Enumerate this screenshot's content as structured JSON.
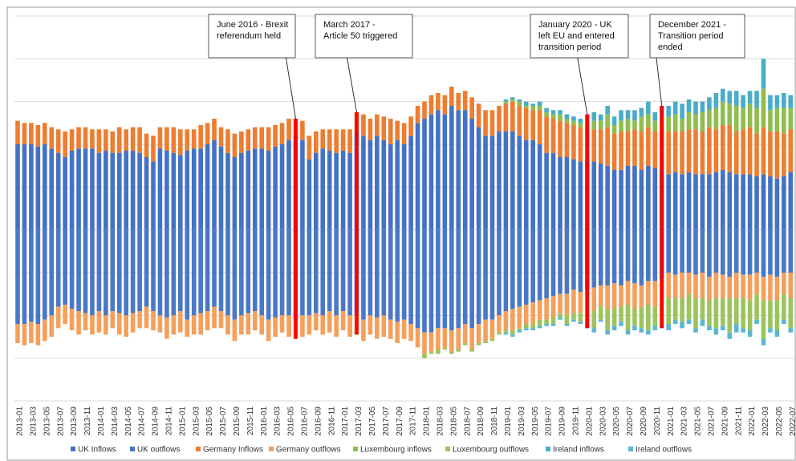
{
  "chart_data": {
    "type": "bar",
    "stacked": true,
    "categories": [
      "2013-01",
      null,
      "2013-03",
      null,
      "2013-05",
      null,
      "2013-07",
      null,
      "2013-09",
      null,
      "2013-11",
      null,
      "2014-01",
      null,
      "2014-03",
      null,
      "2014-05",
      null,
      "2014-07",
      null,
      "2014-09",
      null,
      "2014-11",
      null,
      "2015-01",
      null,
      "2015-03",
      null,
      "2015-05",
      null,
      "2015-07",
      null,
      "2015-09",
      null,
      "2015-11",
      null,
      "2016-01",
      null,
      "2016-03",
      null,
      "2016-05",
      null,
      "2016-07",
      null,
      "2016-09",
      null,
      "2016-11",
      null,
      "2017-01",
      null,
      "2017-03",
      null,
      "2017-05",
      null,
      "2017-07",
      null,
      "2017-09",
      null,
      "2017-11",
      null,
      "2018-01",
      null,
      "2018-03",
      null,
      "2018-05",
      null,
      "2018-07",
      null,
      "2018-09",
      null,
      "2018-11",
      null,
      "2019-01",
      null,
      "2019-03",
      null,
      "2019-05",
      null,
      "2019-07",
      null,
      "2019-09",
      null,
      "2019-11",
      null,
      "2020-01",
      null,
      "2020-03",
      null,
      "2020-05",
      null,
      "2020-07",
      null,
      "2020-09",
      null,
      "2020-11",
      null,
      "2021-01",
      null,
      "2021-03",
      null,
      "2021-05",
      null,
      "2021-07",
      null,
      "2021-09",
      null,
      "2021-11",
      null,
      "2022-01",
      null,
      "2022-03",
      null,
      "2022-05",
      null,
      "2022-07"
    ],
    "series": [
      {
        "name": "UK Inflows",
        "color": "#4472c4",
        "values": [
          2.0,
          2.0,
          2.0,
          1.95,
          2.0,
          1.9,
          1.8,
          1.7,
          1.85,
          1.9,
          1.9,
          1.9,
          1.8,
          1.85,
          1.8,
          1.8,
          1.85,
          1.85,
          1.8,
          1.7,
          1.6,
          1.9,
          1.85,
          1.8,
          1.75,
          1.85,
          1.9,
          1.9,
          2.0,
          2.1,
          1.95,
          1.8,
          1.7,
          1.8,
          1.85,
          1.9,
          1.9,
          1.85,
          1.95,
          2.0,
          2.1,
          2.2,
          2.1,
          1.65,
          1.8,
          1.9,
          1.85,
          1.8,
          1.85,
          1.8,
          2.3,
          2.2,
          2.1,
          2.2,
          2.1,
          2.0,
          2.1,
          2.0,
          2.2,
          2.5,
          2.6,
          2.7,
          2.8,
          2.7,
          2.9,
          2.8,
          2.8,
          2.6,
          2.4,
          2.2,
          2.2,
          2.3,
          2.3,
          2.3,
          2.2,
          2.1,
          2.1,
          2.0,
          1.8,
          1.8,
          1.7,
          1.7,
          1.65,
          1.6,
          1.6,
          1.6,
          1.55,
          1.5,
          1.4,
          1.4,
          1.5,
          1.5,
          1.4,
          1.5,
          1.45,
          1.4,
          1.3,
          1.35,
          1.3,
          1.35,
          1.3,
          1.3,
          1.3,
          1.35,
          1.4,
          1.35,
          1.3,
          1.3,
          1.3,
          1.25,
          1.3,
          1.25,
          1.2,
          1.25,
          1.35
        ]
      },
      {
        "name": "UK outflows",
        "color": "#4a78c6",
        "values": [
          -2.2,
          -2.2,
          -2.15,
          -2.2,
          -2.1,
          -2.0,
          -1.8,
          -1.75,
          -1.85,
          -1.9,
          -1.95,
          -2.0,
          -1.9,
          -2.0,
          -1.9,
          -1.95,
          -2.0,
          -1.95,
          -1.9,
          -1.8,
          -1.9,
          -2.0,
          -2.05,
          -2.0,
          -1.9,
          -2.1,
          -2.0,
          -1.95,
          -1.9,
          -1.8,
          -1.9,
          -2.0,
          -2.1,
          -2.0,
          -1.95,
          -1.9,
          -2.0,
          -2.1,
          -2.05,
          -2.0,
          -2.0,
          -2.1,
          -2.0,
          -2.0,
          -1.95,
          -2.0,
          -1.9,
          -2.0,
          -1.9,
          -2.0,
          -2.0,
          -2.1,
          -2.0,
          -2.05,
          -2.0,
          -2.1,
          -2.15,
          -2.1,
          -2.2,
          -2.3,
          -2.4,
          -2.4,
          -2.3,
          -2.3,
          -2.35,
          -2.3,
          -2.2,
          -2.3,
          -2.2,
          -2.1,
          -2.1,
          -2.0,
          -1.9,
          -1.85,
          -1.8,
          -1.75,
          -1.7,
          -1.65,
          -1.6,
          -1.55,
          -1.5,
          -1.5,
          -1.4,
          -1.45,
          -1.4,
          -1.35,
          -1.3,
          -1.3,
          -1.25,
          -1.3,
          -1.2,
          -1.25,
          -1.3,
          -1.2,
          -1.2,
          -1.15,
          -1.0,
          -1.05,
          -1.0,
          -1.0,
          -1.05,
          -1.0,
          -1.1,
          -1.0,
          -1.05,
          -1.1,
          -1.0,
          -1.05,
          -1.05,
          -1.0,
          -1.1,
          -1.05,
          -1.1,
          -1.0,
          -1.0
        ]
      },
      {
        "name": "Germany Inflows",
        "color": "#ed7d31",
        "values": [
          0.55,
          0.5,
          0.5,
          0.5,
          0.5,
          0.5,
          0.55,
          0.6,
          0.5,
          0.5,
          0.5,
          0.45,
          0.55,
          0.5,
          0.5,
          0.6,
          0.5,
          0.55,
          0.6,
          0.55,
          0.6,
          0.5,
          0.55,
          0.6,
          0.6,
          0.5,
          0.45,
          0.55,
          0.5,
          0.5,
          0.45,
          0.55,
          0.55,
          0.5,
          0.5,
          0.5,
          0.5,
          0.55,
          0.5,
          0.5,
          0.5,
          0.4,
          0.45,
          0.55,
          0.5,
          0.45,
          0.5,
          0.55,
          0.5,
          0.55,
          0.45,
          0.5,
          0.5,
          0.5,
          0.55,
          0.6,
          0.45,
          0.5,
          0.45,
          0.4,
          0.4,
          0.45,
          0.4,
          0.45,
          0.45,
          0.4,
          0.45,
          0.5,
          0.55,
          0.6,
          0.6,
          0.6,
          0.65,
          0.7,
          0.7,
          0.75,
          0.7,
          0.8,
          0.85,
          0.8,
          0.85,
          0.8,
          0.8,
          0.8,
          0.8,
          0.75,
          0.8,
          0.9,
          0.85,
          0.9,
          0.8,
          0.85,
          0.9,
          0.9,
          0.85,
          0.95,
          1.0,
          0.95,
          1.0,
          1.0,
          1.05,
          1.0,
          1.1,
          1.0,
          1.05,
          1.1,
          1.0,
          1.05,
          1.1,
          1.0,
          1.1,
          1.05,
          1.1,
          1.0,
          1.0
        ]
      },
      {
        "name": "Germany outflows",
        "color": "#f4a05c",
        "values": [
          -0.45,
          -0.5,
          -0.5,
          -0.5,
          -0.5,
          -0.5,
          -0.5,
          -0.45,
          -0.5,
          -0.55,
          -0.4,
          -0.45,
          -0.5,
          -0.45,
          -0.4,
          -0.5,
          -0.5,
          -0.45,
          -0.4,
          -0.5,
          -0.45,
          -0.4,
          -0.5,
          -0.45,
          -0.5,
          -0.4,
          -0.45,
          -0.5,
          -0.45,
          -0.5,
          -0.4,
          -0.45,
          -0.5,
          -0.45,
          -0.5,
          -0.45,
          -0.45,
          -0.5,
          -0.45,
          -0.4,
          -0.5,
          -0.45,
          -0.5,
          -0.45,
          -0.4,
          -0.45,
          -0.5,
          -0.5,
          -0.45,
          -0.5,
          -0.45,
          -0.5,
          -0.45,
          -0.5,
          -0.5,
          -0.45,
          -0.5,
          -0.45,
          -0.4,
          -0.45,
          -0.5,
          -0.45,
          -0.5,
          -0.45,
          -0.5,
          -0.5,
          -0.45,
          -0.5,
          -0.45,
          -0.5,
          -0.45,
          -0.4,
          -0.45,
          -0.5,
          -0.5,
          -0.45,
          -0.5,
          -0.45,
          -0.5,
          -0.5,
          -0.45,
          -0.5,
          -0.55,
          -0.5,
          -0.5,
          -0.55,
          -0.5,
          -0.55,
          -0.6,
          -0.5,
          -0.55,
          -0.6,
          -0.5,
          -0.55,
          -0.6,
          -0.55,
          -0.6,
          -0.55,
          -0.6,
          -0.5,
          -0.55,
          -0.6,
          -0.55,
          -0.6,
          -0.55,
          -0.5,
          -0.6,
          -0.55,
          -0.6,
          -0.5,
          -0.55,
          -0.6,
          -0.55,
          -0.5,
          -0.6
        ]
      },
      {
        "name": "Luxembourg inflows",
        "color": "#8fbd4e",
        "values": [
          0,
          0,
          0,
          0,
          0,
          0,
          0,
          0,
          0,
          0,
          0,
          0,
          0,
          0,
          0,
          0,
          0,
          0,
          0,
          0,
          0,
          0,
          0,
          0,
          0,
          0,
          0,
          0,
          0,
          0,
          0,
          0,
          0,
          0,
          0,
          0,
          0,
          0,
          0,
          0,
          0,
          0,
          0,
          0,
          0,
          0,
          0,
          0,
          0,
          0,
          0,
          0,
          0,
          0,
          0,
          0,
          0,
          0,
          0,
          0,
          0,
          0,
          0,
          0,
          0,
          0,
          0,
          0,
          0,
          0,
          0,
          0,
          0.05,
          0.05,
          0.1,
          0.05,
          0.1,
          0.1,
          0.1,
          0.1,
          0.15,
          0.1,
          0.1,
          0.1,
          0.15,
          0.2,
          0.2,
          0.3,
          0.2,
          0.25,
          0.3,
          0.2,
          0.35,
          0.3,
          0.25,
          0.3,
          0.35,
          0.4,
          0.3,
          0.4,
          0.35,
          0.45,
          0.4,
          0.5,
          0.55,
          0.5,
          0.6,
          0.5,
          0.55,
          0.6,
          0.9,
          0.5,
          0.55,
          0.6,
          0.5
        ]
      },
      {
        "name": "Luxembourg outflows",
        "color": "#9cc45e",
        "values": [
          0,
          0,
          0,
          0,
          0,
          0,
          0,
          0,
          0,
          0,
          0,
          0,
          0,
          0,
          0,
          0,
          0,
          0,
          0,
          0,
          0,
          0,
          0,
          0,
          0,
          0,
          0,
          0,
          0,
          0,
          0,
          0,
          0,
          0,
          0,
          0,
          0,
          0,
          0,
          0,
          0,
          0,
          0,
          0,
          0,
          0,
          0,
          0,
          0,
          0,
          0,
          0,
          0,
          0,
          0,
          0,
          0,
          0,
          0,
          0,
          -0.1,
          -0.05,
          -0.1,
          -0.05,
          -0.05,
          -0.05,
          -0.05,
          -0.05,
          -0.05,
          -0.05,
          -0.05,
          -0.05,
          -0.05,
          -0.1,
          -0.05,
          -0.1,
          -0.1,
          -0.15,
          -0.1,
          -0.15,
          -0.1,
          -0.2,
          -0.15,
          -0.2,
          -0.3,
          -0.4,
          -0.3,
          -0.5,
          -0.4,
          -0.35,
          -0.6,
          -0.4,
          -0.5,
          -0.6,
          -0.45,
          -0.5,
          -0.6,
          -0.5,
          -0.55,
          -0.6,
          -0.7,
          -0.5,
          -0.6,
          -0.7,
          -0.65,
          -0.8,
          -0.6,
          -0.7,
          -0.7,
          -0.6,
          -0.9,
          -0.65,
          -0.7,
          -0.6,
          -0.7
        ]
      },
      {
        "name": "Ireland inflows",
        "color": "#4bacc6",
        "values": [
          0,
          0,
          0,
          0,
          0,
          0,
          0,
          0,
          0,
          0,
          0,
          0,
          0,
          0,
          0,
          0,
          0,
          0,
          0,
          0,
          0,
          0,
          0,
          0,
          0,
          0,
          0,
          0,
          0,
          0,
          0,
          0,
          0,
          0,
          0,
          0,
          0,
          0,
          0,
          0,
          0,
          0,
          0,
          0,
          0,
          0,
          0,
          0,
          0,
          0,
          0,
          0,
          0,
          0,
          0,
          0,
          0,
          0,
          0,
          0,
          0,
          0,
          0,
          0,
          0,
          0,
          0,
          0,
          0,
          0,
          0,
          0,
          0.05,
          0.05,
          0.05,
          0.1,
          0.05,
          0.1,
          0.1,
          0.1,
          0.1,
          0.1,
          0.1,
          0.1,
          0.15,
          0.2,
          0.15,
          0.2,
          0.2,
          0.25,
          0.2,
          0.25,
          0.2,
          0.3,
          0.2,
          0.25,
          0.25,
          0.3,
          0.35,
          0.3,
          0.3,
          0.25,
          0.3,
          0.35,
          0.3,
          0.3,
          0.35,
          0.3,
          0.3,
          0.4,
          0.7,
          0.35,
          0.3,
          0.35,
          0.3
        ]
      },
      {
        "name": "Ireland outflows",
        "color": "#5bb6d4",
        "values": [
          0,
          0,
          0,
          0,
          0,
          0,
          0,
          0,
          0,
          0,
          0,
          0,
          0,
          0,
          0,
          0,
          0,
          0,
          0,
          0,
          0,
          0,
          0,
          0,
          0,
          0,
          0,
          0,
          0,
          0,
          0,
          0,
          0,
          0,
          0,
          0,
          0,
          0,
          0,
          0,
          0,
          0,
          0,
          0,
          0,
          0,
          0,
          0,
          0,
          0,
          0,
          0,
          0,
          0,
          0,
          0,
          0,
          0,
          0,
          0,
          0,
          0,
          0,
          0,
          0,
          0,
          0,
          0,
          0,
          0,
          0,
          0,
          -0.05,
          -0.05,
          -0.05,
          -0.05,
          -0.05,
          -0.05,
          -0.05,
          -0.05,
          -0.05,
          -0.05,
          -0.05,
          -0.05,
          -0.1,
          -0.1,
          -0.05,
          -0.1,
          -0.1,
          -0.1,
          -0.1,
          -0.1,
          -0.1,
          -0.1,
          -0.1,
          -0.1,
          -0.15,
          -0.1,
          -0.15,
          -0.1,
          -0.1,
          -0.15,
          -0.1,
          -0.15,
          -0.1,
          -0.15,
          -0.2,
          -0.1,
          -0.15,
          -0.1,
          -0.15,
          -0.1,
          -0.15,
          -0.1,
          -0.1
        ]
      }
    ],
    "ylim": [
      -4,
      5
    ],
    "yticks": [
      -4,
      -3,
      -2,
      -1,
      0,
      1,
      2,
      3,
      4,
      5
    ],
    "grid": true,
    "legend": "bottom",
    "annotations": [
      {
        "text": [
          "June 2016 - Brexit",
          "referendum held"
        ],
        "x": 41
      },
      {
        "text": [
          "March 2017 -",
          "Article 50 triggered"
        ],
        "x": 50
      },
      {
        "text": [
          "January 2020 - UK",
          "left EU and entered",
          "transition period"
        ],
        "x": 84
      },
      {
        "text": [
          "December 2021 -",
          "Transition period",
          "ended"
        ],
        "x": 95
      }
    ]
  }
}
